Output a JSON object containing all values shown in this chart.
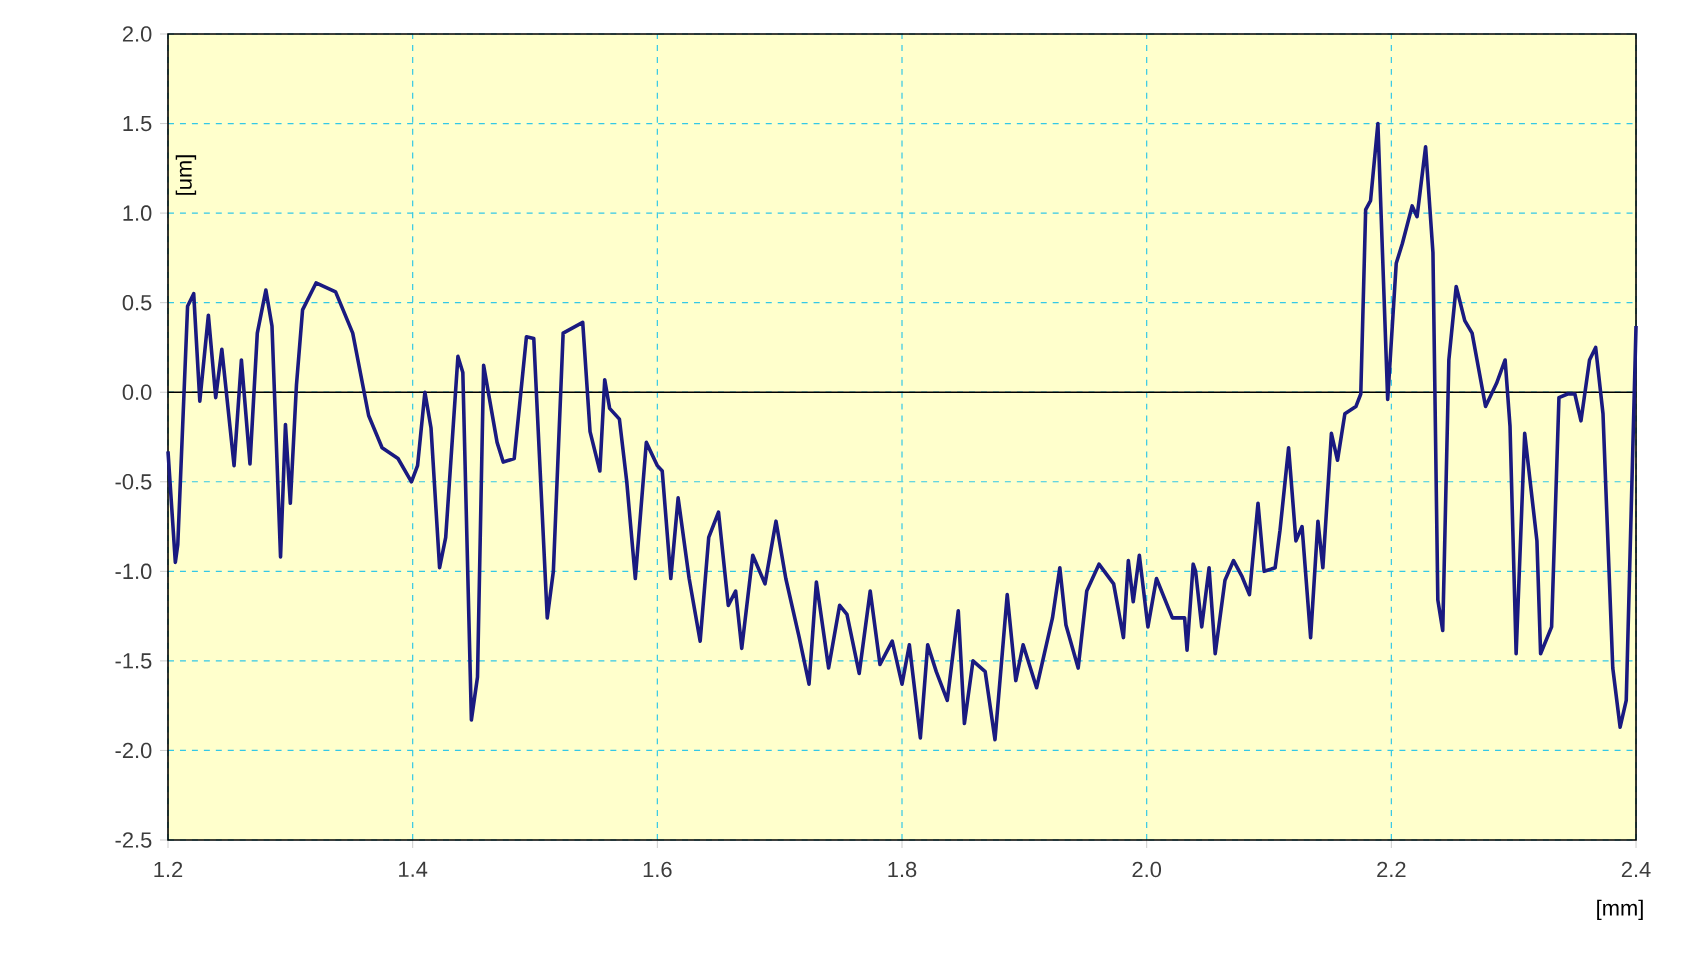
{
  "chart_data": {
    "type": "line",
    "xlabel": "[mm]",
    "ylabel": "[um]",
    "xlim": [
      1.2,
      2.4
    ],
    "ylim": [
      -2.5,
      2.0
    ],
    "xticks": [
      1.2,
      1.4,
      1.6,
      1.8,
      {
        "value": 2.0,
        "label": "2.0"
      },
      2.2,
      2.4
    ],
    "yticks": [
      {
        "value": -2.5,
        "label": "-2.5"
      },
      {
        "value": -2.0,
        "label": "-2.0"
      },
      {
        "value": -1.5,
        "label": "-1.5"
      },
      {
        "value": -1.0,
        "label": "-1.0"
      },
      {
        "value": -0.5,
        "label": "-0.5"
      },
      {
        "value": 0.0,
        "label": "0.0"
      },
      {
        "value": 0.5,
        "label": "0.5"
      },
      {
        "value": 1.0,
        "label": "1.0"
      },
      {
        "value": 1.5,
        "label": "1.5"
      },
      {
        "value": 2.0,
        "label": "2.0"
      }
    ],
    "grid": true,
    "marker": "none",
    "line_style": "solid",
    "ref_lines": [
      {
        "axis": "y",
        "value": 0,
        "color": "#000000",
        "line_style": "solid"
      }
    ],
    "series": [
      {
        "color": "#1a1a80",
        "x": [
          1.2,
          1.206,
          1.208,
          1.216,
          1.221,
          1.226,
          1.233,
          1.239,
          1.244,
          1.254,
          1.26,
          1.267,
          1.273,
          1.28,
          1.285,
          1.292,
          1.296,
          1.3,
          1.305,
          1.31,
          1.321,
          1.337,
          1.351,
          1.364,
          1.375,
          1.388,
          1.399,
          1.404,
          1.41,
          1.415,
          1.422,
          1.427,
          1.437,
          1.441,
          1.448,
          1.453,
          1.458,
          1.469,
          1.474,
          1.483,
          1.493,
          1.499,
          1.51,
          1.515,
          1.523,
          1.539,
          1.545,
          1.553,
          1.557,
          1.561,
          1.569,
          1.575,
          1.582,
          1.591,
          1.6,
          1.604,
          1.611,
          1.617,
          1.626,
          1.635,
          1.642,
          1.65,
          1.658,
          1.664,
          1.669,
          1.678,
          1.688,
          1.697,
          1.705,
          1.716,
          1.724,
          1.73,
          1.74,
          1.749,
          1.755,
          1.765,
          1.774,
          1.782,
          1.792,
          1.8,
          1.806,
          1.815,
          1.821,
          1.828,
          1.837,
          1.846,
          1.851,
          1.858,
          1.868,
          1.876,
          1.886,
          1.893,
          1.899,
          1.91,
          1.923,
          1.929,
          1.934,
          1.944,
          1.951,
          1.961,
          1.973,
          1.981,
          1.985,
          1.989,
          1.994,
          2.001,
          2.008,
          2.021,
          2.031,
          2.033,
          2.038,
          2.04,
          2.045,
          2.051,
          2.056,
          2.064,
          2.071,
          2.078,
          2.084,
          2.091,
          2.096,
          2.105,
          2.109,
          2.116,
          2.122,
          2.127,
          2.134,
          2.14,
          2.144,
          2.151,
          2.156,
          2.162,
          2.171,
          2.175,
          2.179,
          2.183,
          2.189,
          2.197,
          2.204,
          2.209,
          2.217,
          2.221,
          2.228,
          2.234,
          2.238,
          2.242,
          2.247,
          2.253,
          2.26,
          2.266,
          2.277,
          2.286,
          2.293,
          2.297,
          2.302,
          2.309,
          2.319,
          2.322,
          2.331,
          2.337,
          2.344,
          2.35,
          2.355,
          2.362,
          2.367,
          2.373,
          2.381,
          2.387,
          2.392,
          2.4
        ],
        "values": [
          -0.33,
          -0.95,
          -0.85,
          0.48,
          0.55,
          -0.05,
          0.43,
          -0.03,
          0.24,
          -0.41,
          0.18,
          -0.4,
          0.33,
          0.57,
          0.37,
          -0.92,
          -0.18,
          -0.62,
          0.04,
          0.46,
          0.61,
          0.56,
          0.33,
          -0.13,
          -0.31,
          -0.37,
          -0.5,
          -0.41,
          0.0,
          -0.2,
          -0.98,
          -0.81,
          0.2,
          0.11,
          -1.83,
          -1.59,
          0.15,
          -0.28,
          -0.39,
          -0.37,
          0.31,
          0.3,
          -1.26,
          -1.0,
          0.33,
          0.39,
          -0.22,
          -0.44,
          0.07,
          -0.09,
          -0.15,
          -0.5,
          -1.04,
          -0.28,
          -0.41,
          -0.44,
          -1.04,
          -0.59,
          -1.04,
          -1.39,
          -0.81,
          -0.67,
          -1.19,
          -1.11,
          -1.43,
          -0.91,
          -1.07,
          -0.72,
          -1.04,
          -1.37,
          -1.63,
          -1.06,
          -1.54,
          -1.19,
          -1.24,
          -1.57,
          -1.11,
          -1.52,
          -1.39,
          -1.63,
          -1.41,
          -1.93,
          -1.41,
          -1.56,
          -1.72,
          -1.22,
          -1.85,
          -1.5,
          -1.56,
          -1.94,
          -1.13,
          -1.61,
          -1.41,
          -1.65,
          -1.26,
          -0.98,
          -1.3,
          -1.54,
          -1.11,
          -0.96,
          -1.07,
          -1.37,
          -0.94,
          -1.17,
          -0.91,
          -1.31,
          -1.04,
          -1.26,
          -1.26,
          -1.44,
          -0.96,
          -1.0,
          -1.31,
          -0.98,
          -1.46,
          -1.05,
          -0.94,
          -1.03,
          -1.13,
          -0.62,
          -1.0,
          -0.98,
          -0.77,
          -0.31,
          -0.83,
          -0.75,
          -1.37,
          -0.72,
          -0.98,
          -0.23,
          -0.38,
          -0.12,
          -0.08,
          -0.01,
          1.02,
          1.07,
          1.5,
          -0.04,
          0.72,
          0.83,
          1.04,
          0.98,
          1.37,
          0.78,
          -1.16,
          -1.33,
          0.18,
          0.59,
          0.4,
          0.33,
          -0.08,
          0.05,
          0.18,
          -0.19,
          -1.46,
          -0.23,
          -0.83,
          -1.46,
          -1.31,
          -0.03,
          -0.01,
          -0.01,
          -0.16,
          0.18,
          0.25,
          -0.12,
          -1.54,
          -1.87,
          -1.72,
          0.37
        ]
      }
    ]
  }
}
